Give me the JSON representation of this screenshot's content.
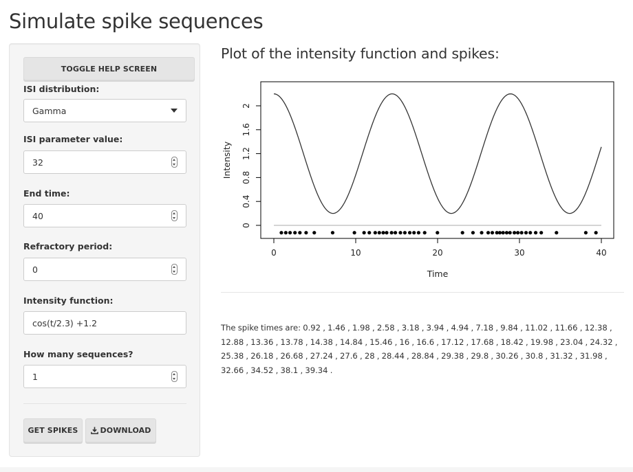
{
  "page": {
    "title": "Simulate spike sequences"
  },
  "sidebar": {
    "toggle_label": "TOGGLE HELP SCREEN",
    "isi_distribution": {
      "label": "ISI distribution:",
      "value": "Gamma"
    },
    "isi_parameter": {
      "label": "ISI parameter value:",
      "value": "32"
    },
    "end_time": {
      "label": "End time:",
      "value": "40"
    },
    "refractory": {
      "label": "Refractory period:",
      "value": "0"
    },
    "intensity": {
      "label": "Intensity function:",
      "value": "cos(t/2.3) +1.2"
    },
    "sequences": {
      "label": "How many sequences?",
      "value": "1"
    },
    "get_spikes_label": "GET SPIKES",
    "download_label": "DOWNLOAD"
  },
  "main": {
    "title": "Plot of the intensity function and spikes:",
    "spike_text": "The spike times are: 0.92 , 1.46 , 1.98 , 2.58 , 3.18 , 3.94 , 4.94 , 7.18 , 9.84 , 11.02 , 11.66 , 12.38 , 12.88 , 13.36 , 13.78 , 14.38 , 14.84 , 15.46 , 16 , 16.6 , 17.12 , 17.68 , 18.42 , 19.98 , 23.04 , 24.32 , 25.38 , 26.18 , 26.68 , 27.24 , 27.6 , 28 , 28.44 , 28.84 , 29.38 , 29.8 , 30.26 , 30.8 , 31.32 , 31.98 , 32.66 , 34.52 , 38.1 , 39.34 ."
  },
  "chart_data": {
    "type": "line",
    "title": "",
    "xlabel": "Time",
    "ylabel": "Intensity",
    "xlim": [
      0,
      40
    ],
    "ylim": [
      -0.1,
      2.2
    ],
    "x_ticks": [
      0,
      10,
      20,
      30,
      40
    ],
    "y_ticks": [
      0,
      0.4,
      0.8,
      1.2,
      1.6,
      2
    ],
    "x_tick_labels": [
      "0",
      "10",
      "20",
      "30",
      "40"
    ],
    "y_tick_labels": [
      "0",
      "0.4",
      "0.8",
      "1.2",
      "1.6",
      "2"
    ],
    "series": [
      {
        "function": "cos(t/2.3) +1.2",
        "t_start": 0,
        "t_end": 40
      }
    ],
    "baseline": 0,
    "spikes_y": -0.1,
    "spikes": [
      0.92,
      1.46,
      1.98,
      2.58,
      3.18,
      3.94,
      4.94,
      7.18,
      9.84,
      11.02,
      11.66,
      12.38,
      12.88,
      13.36,
      13.78,
      14.38,
      14.84,
      15.46,
      16,
      16.6,
      17.12,
      17.68,
      18.42,
      19.98,
      23.04,
      24.32,
      25.38,
      26.18,
      26.68,
      27.24,
      27.6,
      28,
      28.44,
      28.84,
      29.38,
      29.8,
      30.26,
      30.8,
      31.32,
      31.98,
      32.66,
      34.52,
      38.1,
      39.34
    ],
    "grid": false,
    "line_color": "#333333",
    "baseline_color": "#bbbbbb"
  }
}
